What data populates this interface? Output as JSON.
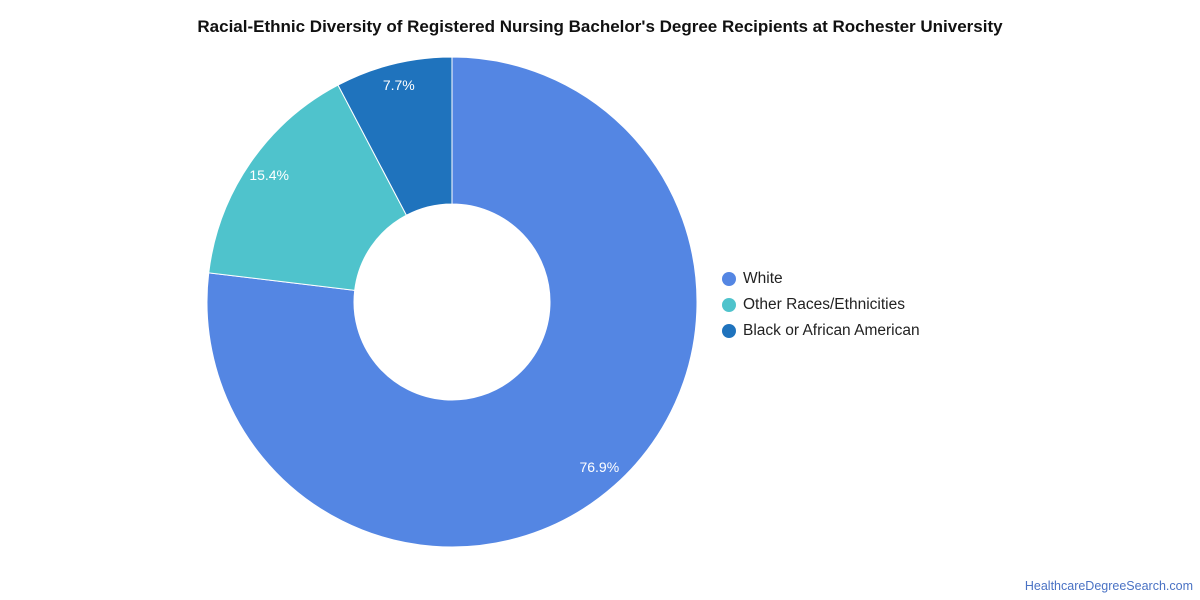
{
  "chart_data": {
    "type": "pie",
    "title": "Racial-Ethnic Diversity of Registered Nursing Bachelor's Degree Recipients at Rochester University",
    "categories": [
      "White",
      "Other Races/Ethnicities",
      "Black or African American"
    ],
    "values": [
      76.9,
      15.4,
      7.7
    ],
    "labels": [
      "76.9%",
      "15.4%",
      "7.7%"
    ],
    "colors": [
      "#5486e3",
      "#4fc3cc",
      "#1f73bd"
    ],
    "donut": true,
    "legend": "right"
  },
  "source": "HealthcareDegreeSearch.com"
}
